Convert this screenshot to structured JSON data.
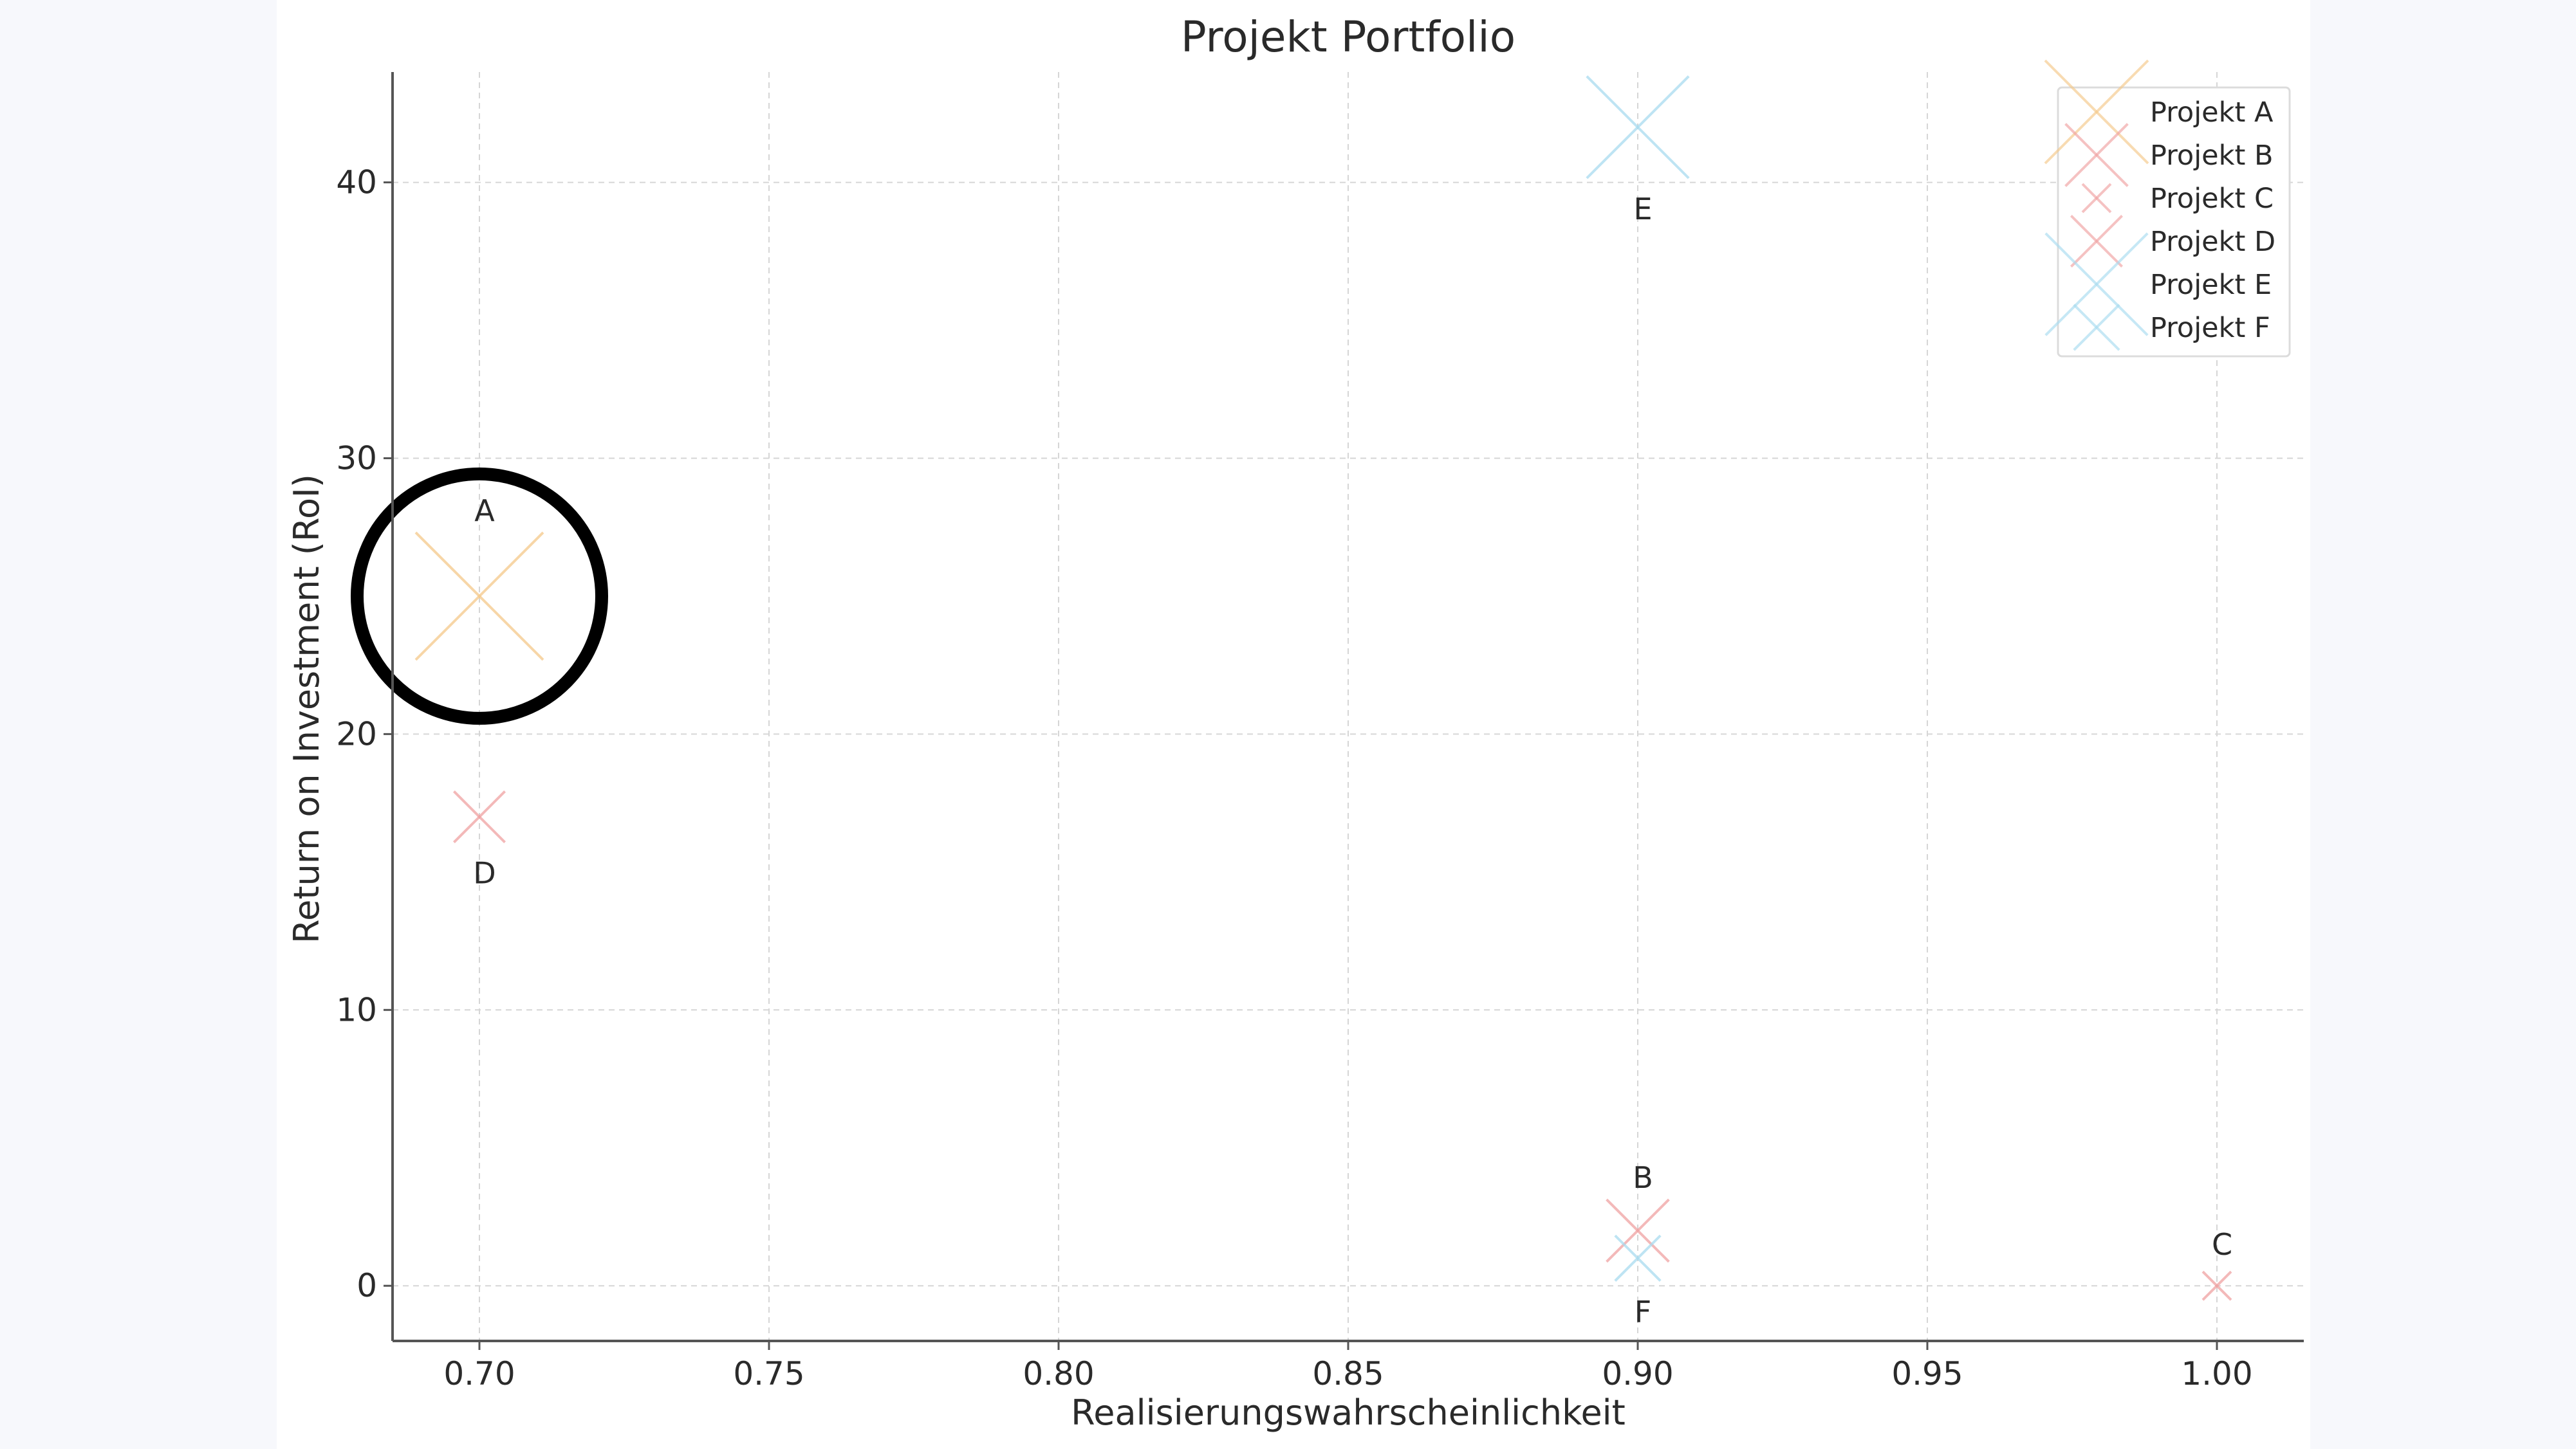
{
  "chart_data": {
    "type": "scatter",
    "title": "Projekt Portfolio",
    "xlabel": "Realisierungswahrscheinlichkeit",
    "ylabel": "Return on Investment (RoI)",
    "xlim": [
      0.685,
      1.015
    ],
    "ylim": [
      -2,
      44
    ],
    "xticks": [
      0.7,
      0.75,
      0.8,
      0.85,
      0.9,
      0.95,
      1.0
    ],
    "xtick_labels": [
      "0.70",
      "0.75",
      "0.80",
      "0.85",
      "0.90",
      "0.95",
      "1.00"
    ],
    "yticks": [
      0,
      10,
      20,
      30,
      40
    ],
    "ytick_labels": [
      "0",
      "10",
      "20",
      "30",
      "40"
    ],
    "grid": true,
    "legend_position": "top-right",
    "series": [
      {
        "name": "Projekt A",
        "label": "A",
        "x": 0.7,
        "y": 25,
        "size": 4.5,
        "color": "#f5c98a",
        "label_side": "above"
      },
      {
        "name": "Projekt B",
        "label": "B",
        "x": 0.9,
        "y": 2,
        "size": 2.2,
        "color": "#f0a2a2",
        "label_side": "above"
      },
      {
        "name": "Projekt C",
        "label": "C",
        "x": 1.0,
        "y": 0,
        "size": 1.0,
        "color": "#f0a2a2",
        "label_side": "above"
      },
      {
        "name": "Projekt D",
        "label": "D",
        "x": 0.7,
        "y": 17,
        "size": 1.8,
        "color": "#f0a2a2",
        "label_side": "below"
      },
      {
        "name": "Projekt E",
        "label": "E",
        "x": 0.9,
        "y": 42,
        "size": 3.6,
        "color": "#a9dcf0",
        "label_side": "below"
      },
      {
        "name": "Projekt F",
        "label": "F",
        "x": 0.9,
        "y": 1,
        "size": 1.6,
        "color": "#a9dcf0",
        "label_side": "below"
      }
    ],
    "annotation": {
      "type": "circle",
      "target": "Projekt A",
      "color": "#000000"
    }
  }
}
